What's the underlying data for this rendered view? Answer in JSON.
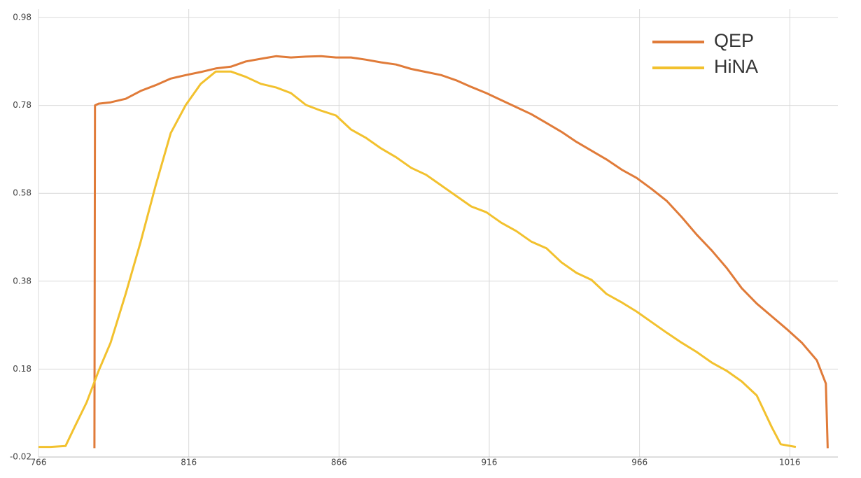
{
  "chart_data": {
    "type": "line",
    "xlim": [
      766,
      1032
    ],
    "ylim": [
      -0.02,
      0.98
    ],
    "xticks": [
      766,
      816,
      866,
      916,
      966,
      1016
    ],
    "yticks": [
      -0.02,
      0.18,
      0.38,
      0.58,
      0.78,
      0.98
    ],
    "grid": true,
    "legend": "upper right",
    "series": [
      {
        "name": "QEP",
        "color": "#e07b39",
        "x": [
          784.6,
          784.8,
          786,
          790,
          795,
          800,
          805,
          810,
          815,
          820,
          825,
          830,
          835,
          840,
          845,
          850,
          855,
          860,
          865,
          870,
          875,
          880,
          885,
          890,
          895,
          900,
          905,
          910,
          915,
          920,
          925,
          930,
          935,
          940,
          945,
          950,
          955,
          960,
          965,
          970,
          975,
          980,
          985,
          990,
          995,
          1000,
          1005,
          1010,
          1015,
          1020,
          1025,
          1028,
          1028.6
        ],
        "values": [
          0.0,
          0.78,
          0.784,
          0.787,
          0.795,
          0.813,
          0.826,
          0.841,
          0.849,
          0.856,
          0.864,
          0.868,
          0.88,
          0.886,
          0.892,
          0.889,
          0.891,
          0.892,
          0.889,
          0.889,
          0.884,
          0.878,
          0.873,
          0.863,
          0.856,
          0.849,
          0.837,
          0.822,
          0.808,
          0.792,
          0.776,
          0.76,
          0.74,
          0.72,
          0.697,
          0.677,
          0.657,
          0.634,
          0.615,
          0.59,
          0.563,
          0.526,
          0.486,
          0.45,
          0.41,
          0.364,
          0.329,
          0.3,
          0.271,
          0.24,
          0.2,
          0.147,
          0.0
        ]
      },
      {
        "name": "HiNA",
        "color": "#f2c12e",
        "x": [
          766,
          770,
          775,
          778,
          782,
          786,
          790,
          795,
          800,
          805,
          810,
          815,
          820,
          825,
          830,
          835,
          840,
          845,
          850,
          855,
          860,
          865,
          870,
          875,
          880,
          885,
          890,
          895,
          900,
          905,
          910,
          915,
          920,
          925,
          930,
          935,
          940,
          945,
          950,
          955,
          960,
          965,
          970,
          975,
          980,
          985,
          990,
          995,
          1000,
          1005,
          1010,
          1013,
          1018
        ],
        "values": [
          0.003,
          0.003,
          0.005,
          0.048,
          0.104,
          0.176,
          0.24,
          0.351,
          0.47,
          0.598,
          0.717,
          0.781,
          0.829,
          0.857,
          0.857,
          0.845,
          0.829,
          0.821,
          0.808,
          0.781,
          0.768,
          0.757,
          0.725,
          0.706,
          0.682,
          0.662,
          0.638,
          0.622,
          0.598,
          0.574,
          0.55,
          0.537,
          0.513,
          0.494,
          0.47,
          0.455,
          0.423,
          0.399,
          0.383,
          0.351,
          0.332,
          0.311,
          0.287,
          0.263,
          0.24,
          0.219,
          0.195,
          0.176,
          0.152,
          0.12,
          0.048,
          0.009,
          0.003
        ]
      }
    ]
  }
}
